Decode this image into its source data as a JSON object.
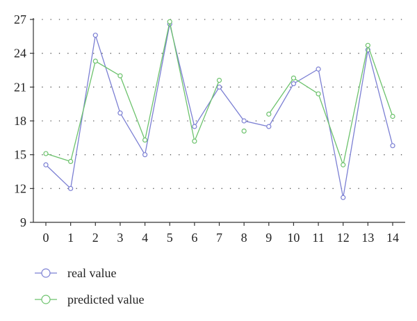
{
  "chart_data": {
    "type": "line",
    "title": "",
    "xlabel": "",
    "ylabel": "",
    "x": [
      0,
      1,
      2,
      3,
      4,
      5,
      6,
      7,
      8,
      9,
      10,
      11,
      12,
      13,
      14
    ],
    "xlim": [
      0,
      14
    ],
    "ylim": [
      9,
      27
    ],
    "yticks": [
      9,
      12,
      15,
      18,
      21,
      24,
      27
    ],
    "grid": "horizontal dotted",
    "legend_position": "bottom-left",
    "series": [
      {
        "name": "real value",
        "color": "#7b7fd3",
        "values": [
          14.1,
          12.0,
          25.6,
          18.7,
          15.0,
          26.6,
          17.5,
          21.0,
          18.0,
          17.5,
          21.3,
          22.6,
          11.2,
          24.3,
          15.8
        ],
        "gaps": []
      },
      {
        "name": "predicted value",
        "color": "#6cc26c",
        "values": [
          15.1,
          14.4,
          23.3,
          22.0,
          16.3,
          26.8,
          16.2,
          21.6,
          17.1,
          18.6,
          21.8,
          20.4,
          14.1,
          24.7,
          18.4
        ],
        "gaps": [
          8
        ]
      }
    ]
  }
}
